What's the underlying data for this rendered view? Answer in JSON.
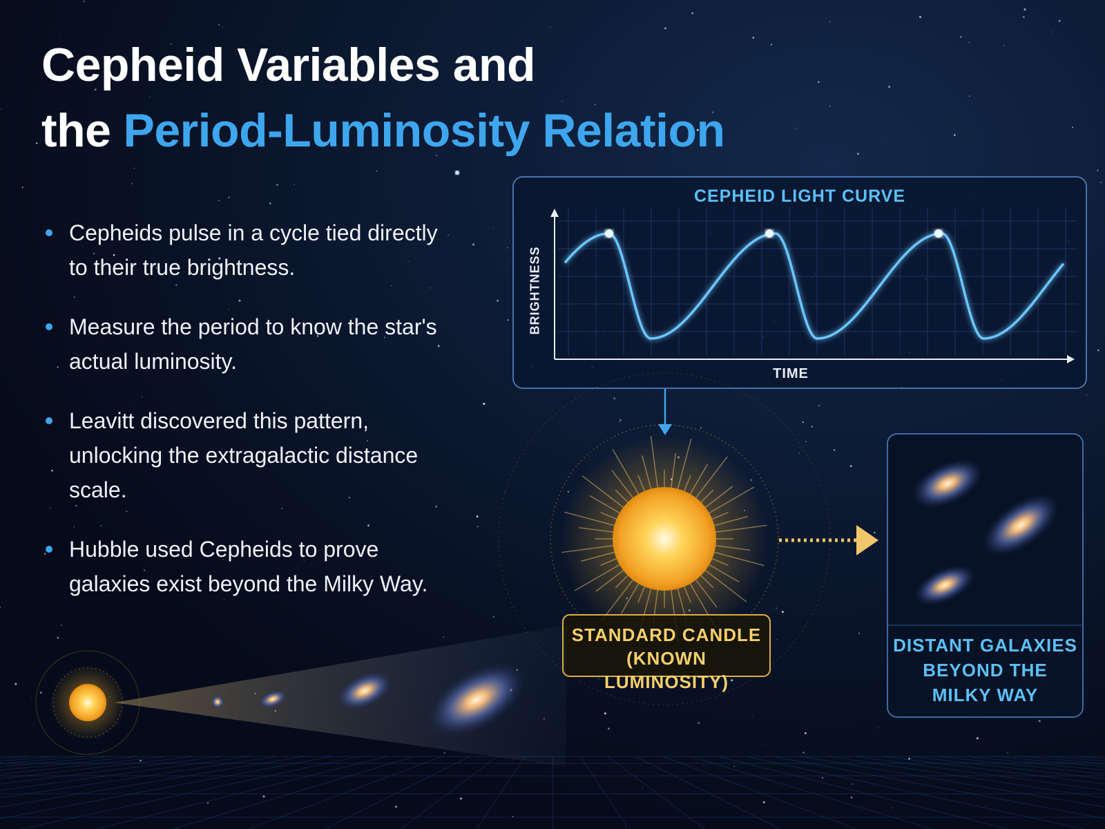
{
  "title": {
    "line1": "Cepheid Variables and",
    "line2_prefix": "the",
    "highlight": "Period-Luminosity Relation"
  },
  "bullets": [
    "Cepheids pulse in a cycle tied directly to their true brightness.",
    "Measure the period to know the star's actual luminosity.",
    "Leavitt discovered this pattern, unlocking the extragalactic distance scale.",
    "Hubble used Cepheids to prove galaxies exist beyond the Milky Way."
  ],
  "light_curve": {
    "title": "CEPHEID LIGHT CURVE",
    "y_label": "BRIGHTNESS",
    "x_label": "TIME"
  },
  "standard_candle": {
    "line1": "STANDARD CANDLE",
    "line2": "(KNOWN LUMINOSITY)"
  },
  "galaxies_panel": {
    "line1": "DISTANT GALAXIES",
    "line2": "BEYOND THE",
    "line3": "MILKY WAY"
  }
}
